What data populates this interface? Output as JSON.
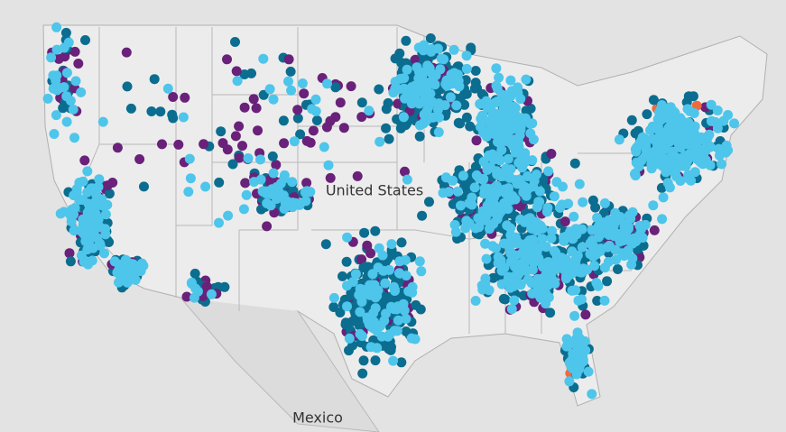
{
  "map": {
    "labels": {
      "country": "United States",
      "neighbor": "Mexico"
    }
  }
}
